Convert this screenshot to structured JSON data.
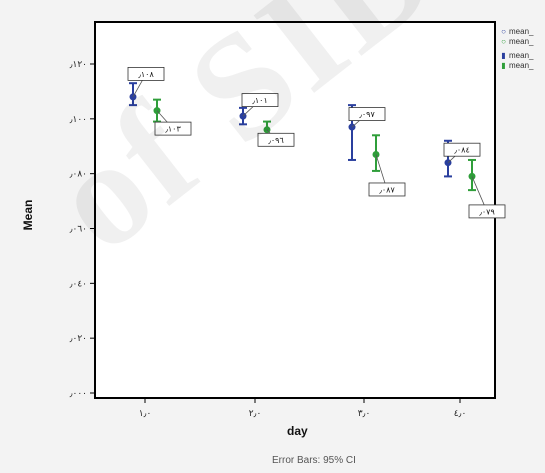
{
  "chart_data": {
    "type": "errorbar",
    "xlabel": "day",
    "ylabel": "Mean",
    "footnote": "Error Bars: 95% CI",
    "categories": [
      "١٫٠",
      "٢٫٠",
      "٣٫٠",
      "٤٫٠"
    ],
    "yticks": [
      "٫٠٠٠",
      "٫٠٢٠",
      "٫٠٤٠",
      "٫٠٦٠",
      "٫٠٨٠",
      "٫١٠٠",
      "٫١٢٠"
    ],
    "ylim": [
      0,
      0.125
    ],
    "grid": false,
    "legend_position": "right",
    "series": [
      {
        "name": "mean_",
        "color": "#2a3f9e",
        "values": [
          0.108,
          0.101,
          0.097,
          0.084
        ],
        "ci_low": [
          0.105,
          0.098,
          0.085,
          0.079
        ],
        "ci_high": [
          0.113,
          0.104,
          0.105,
          0.092
        ],
        "labels": [
          "٫١٠٨",
          "٫١٠١",
          "٫٠٩٧",
          "٫٠٨٤"
        ]
      },
      {
        "name": "mean_",
        "color": "#2f9e3a",
        "values": [
          0.103,
          0.096,
          0.087,
          0.079
        ],
        "ci_low": [
          0.099,
          0.093,
          0.081,
          0.074
        ],
        "ci_high": [
          0.107,
          0.099,
          0.094,
          0.085
        ],
        "labels": [
          "٫١٠٣",
          "٫٠٩٦",
          "٫٠٨٧",
          "٫٠٧٩"
        ]
      }
    ]
  },
  "legend": {
    "items": [
      {
        "marker": "○",
        "label": "mean_",
        "color": "#2a3f9e"
      },
      {
        "marker": "○",
        "label": "mean_",
        "color": "#2f9e3a"
      },
      {
        "marker": "▮",
        "label": "mean_",
        "color": "#2a3f9e"
      },
      {
        "marker": "▮",
        "label": "mean_",
        "color": "#2f9e3a"
      }
    ]
  },
  "watermark": "of SID"
}
